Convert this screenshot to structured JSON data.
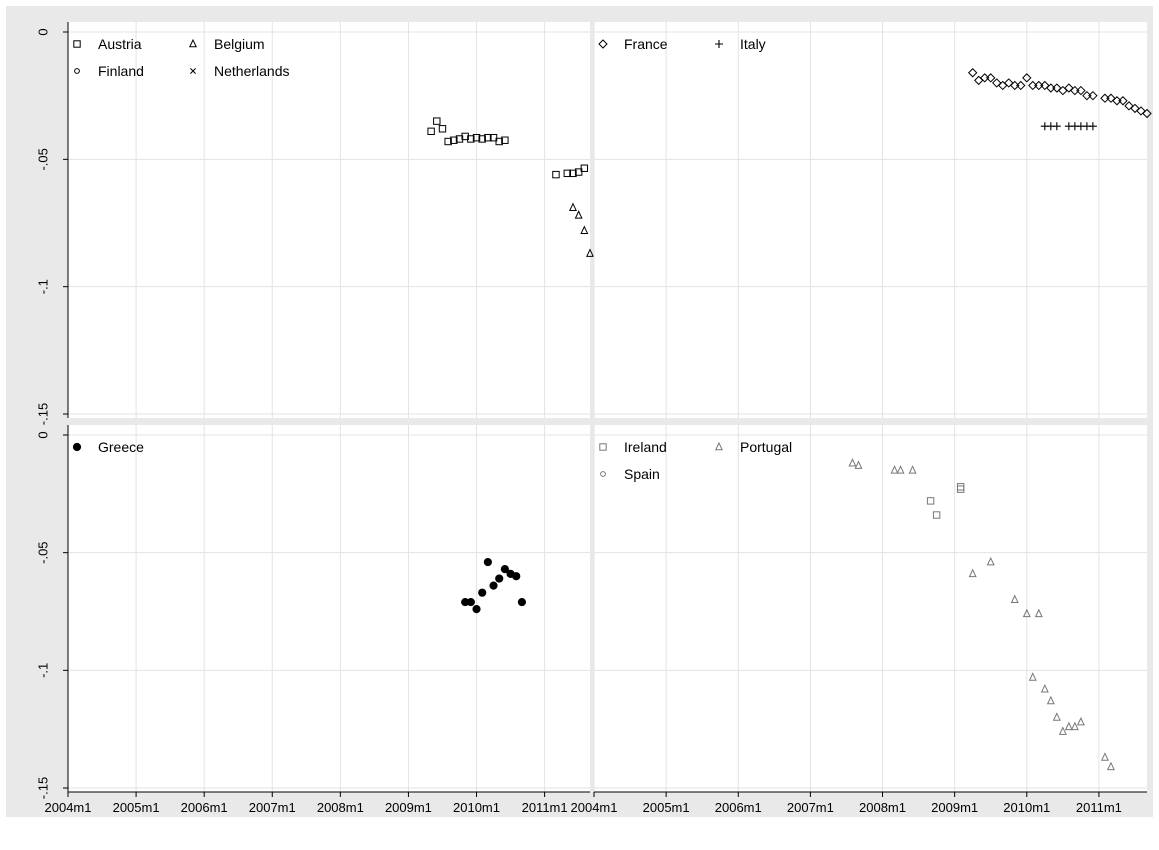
{
  "chart_data": {
    "type": "scatter",
    "layout": "2x2 panels, shared axes",
    "x_ticks": [
      "2004m1",
      "2005m1",
      "2006m1",
      "2007m1",
      "2008m1",
      "2009m1",
      "2010m1",
      "2011m1"
    ],
    "y_ticks": [
      "0",
      "-.05",
      "-.1",
      "-.15"
    ],
    "xlim": [
      "2004m1",
      "2011m9"
    ],
    "ylim": [
      -0.15,
      0
    ],
    "grid": true,
    "legend_placement": "top-left inside each panel",
    "panels": [
      {
        "series": [
          {
            "name": "Austria",
            "marker": "square",
            "color": "#000000",
            "points": [
              [
                "2009m5",
                -0.039
              ],
              [
                "2009m6",
                -0.035
              ],
              [
                "2009m7",
                -0.038
              ],
              [
                "2009m8",
                -0.043
              ],
              [
                "2009m9",
                -0.0425
              ],
              [
                "2009m10",
                -0.042
              ],
              [
                "2009m11",
                -0.041
              ],
              [
                "2009m12",
                -0.042
              ],
              [
                "2010m1",
                -0.0415
              ],
              [
                "2010m2",
                -0.042
              ],
              [
                "2010m3",
                -0.0415
              ],
              [
                "2010m4",
                -0.0415
              ],
              [
                "2010m5",
                -0.043
              ],
              [
                "2010m6",
                -0.0425
              ],
              [
                "2011m3",
                -0.056
              ],
              [
                "2011m5",
                -0.0555
              ],
              [
                "2011m6",
                -0.0555
              ],
              [
                "2011m7",
                -0.055
              ],
              [
                "2011m8",
                -0.0535
              ]
            ]
          },
          {
            "name": "Belgium",
            "marker": "triangle",
            "color": "#000000",
            "points": [
              [
                "2011m6",
                -0.069
              ],
              [
                "2011m7",
                -0.072
              ],
              [
                "2011m8",
                -0.078
              ],
              [
                "2011m9",
                -0.087
              ]
            ]
          },
          {
            "name": "Finland",
            "marker": "circle",
            "color": "#000000",
            "points": []
          },
          {
            "name": "Netherlands",
            "marker": "x",
            "color": "#000000",
            "points": []
          }
        ]
      },
      {
        "series": [
          {
            "name": "France",
            "marker": "diamond",
            "color": "#000000",
            "points": [
              [
                "2009m4",
                -0.016
              ],
              [
                "2009m5",
                -0.019
              ],
              [
                "2009m6",
                -0.018
              ],
              [
                "2009m7",
                -0.018
              ],
              [
                "2009m8",
                -0.02
              ],
              [
                "2009m9",
                -0.021
              ],
              [
                "2009m10",
                -0.02
              ],
              [
                "2009m11",
                -0.021
              ],
              [
                "2009m12",
                -0.021
              ],
              [
                "2010m1",
                -0.018
              ],
              [
                "2010m2",
                -0.021
              ],
              [
                "2010m3",
                -0.021
              ],
              [
                "2010m4",
                -0.021
              ],
              [
                "2010m5",
                -0.022
              ],
              [
                "2010m6",
                -0.022
              ],
              [
                "2010m7",
                -0.023
              ],
              [
                "2010m8",
                -0.022
              ],
              [
                "2010m9",
                -0.023
              ],
              [
                "2010m10",
                -0.023
              ],
              [
                "2010m11",
                -0.025
              ],
              [
                "2010m12",
                -0.025
              ],
              [
                "2011m2",
                -0.026
              ],
              [
                "2011m3",
                -0.026
              ],
              [
                "2011m4",
                -0.027
              ],
              [
                "2011m5",
                -0.027
              ],
              [
                "2011m6",
                -0.029
              ],
              [
                "2011m7",
                -0.03
              ],
              [
                "2011m8",
                -0.031
              ],
              [
                "2011m9",
                -0.032
              ]
            ]
          },
          {
            "name": "Italy",
            "marker": "plus",
            "color": "#000000",
            "points": [
              [
                "2010m4",
                -0.037
              ],
              [
                "2010m5",
                -0.037
              ],
              [
                "2010m6",
                -0.037
              ],
              [
                "2010m8",
                -0.037
              ],
              [
                "2010m9",
                -0.037
              ],
              [
                "2010m10",
                -0.037
              ],
              [
                "2010m11",
                -0.037
              ],
              [
                "2010m12",
                -0.037
              ]
            ]
          }
        ]
      },
      {
        "series": [
          {
            "name": "Greece",
            "marker": "filled-circle",
            "color": "#000000",
            "points": [
              [
                "2009m11",
                -0.071
              ],
              [
                "2009m12",
                -0.071
              ],
              [
                "2010m1",
                -0.074
              ],
              [
                "2010m2",
                -0.067
              ],
              [
                "2010m3",
                -0.054
              ],
              [
                "2010m4",
                -0.064
              ],
              [
                "2010m5",
                -0.061
              ],
              [
                "2010m6",
                -0.057
              ],
              [
                "2010m7",
                -0.059
              ],
              [
                "2010m8",
                -0.06
              ],
              [
                "2010m9",
                -0.071
              ]
            ]
          }
        ]
      },
      {
        "series": [
          {
            "name": "Ireland",
            "marker": "square",
            "color": "#777777",
            "points": [
              [
                "2008m9",
                -0.028
              ],
              [
                "2008m10",
                -0.034
              ],
              [
                "2009m2",
                -0.022
              ],
              [
                "2009m2",
                -0.023
              ]
            ]
          },
          {
            "name": "Portugal",
            "marker": "triangle",
            "color": "#777777",
            "points": [
              [
                "2007m8",
                -0.012
              ],
              [
                "2007m9",
                -0.013
              ],
              [
                "2008m3",
                -0.015
              ],
              [
                "2008m4",
                -0.015
              ],
              [
                "2008m6",
                -0.015
              ],
              [
                "2009m4",
                -0.059
              ],
              [
                "2009m7",
                -0.054
              ],
              [
                "2009m11",
                -0.07
              ],
              [
                "2010m1",
                -0.076
              ],
              [
                "2010m3",
                -0.076
              ],
              [
                "2010m2",
                -0.103
              ],
              [
                "2010m4",
                -0.108
              ],
              [
                "2010m5",
                -0.113
              ],
              [
                "2010m6",
                -0.12
              ],
              [
                "2010m7",
                -0.126
              ],
              [
                "2010m8",
                -0.124
              ],
              [
                "2010m9",
                -0.124
              ],
              [
                "2010m10",
                -0.122
              ],
              [
                "2011m2",
                -0.137
              ],
              [
                "2011m3",
                -0.141
              ]
            ]
          },
          {
            "name": "Spain",
            "marker": "circle",
            "color": "#777777",
            "points": []
          }
        ]
      }
    ]
  }
}
